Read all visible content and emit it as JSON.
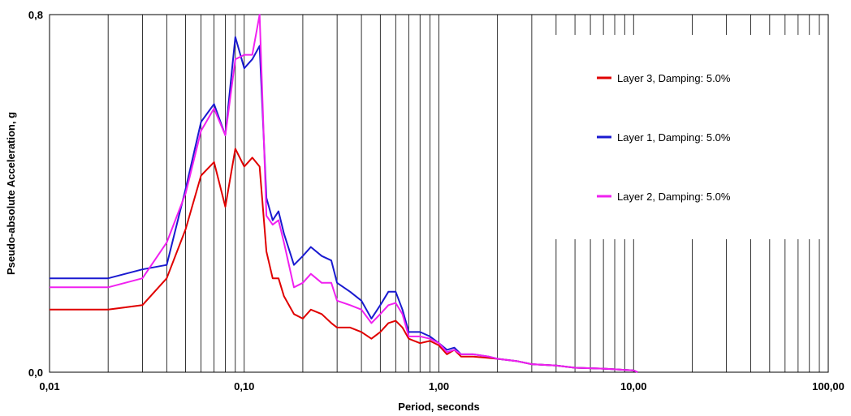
{
  "chart_data": {
    "type": "line",
    "title": "",
    "xlabel": "Period, seconds",
    "ylabel": "Pseudo-absolute Acceleration, g",
    "x_scale": "log",
    "xlim": [
      0.01,
      100
    ],
    "ylim": [
      0,
      0.8
    ],
    "grid": "vertical",
    "legend_position": "top-right",
    "x_tick_labels": [
      "0,01",
      "0,10",
      "1,00",
      "10,00",
      "100,00"
    ],
    "y_tick_labels": [
      "0,0",
      "0,8"
    ],
    "series": [
      {
        "name": "Layer 3, Damping:  5.0%",
        "color": "#e00000",
        "x": [
          0.01,
          0.02,
          0.03,
          0.04,
          0.05,
          0.06,
          0.07,
          0.08,
          0.09,
          0.1,
          0.11,
          0.12,
          0.13,
          0.14,
          0.15,
          0.16,
          0.18,
          0.2,
          0.22,
          0.25,
          0.28,
          0.3,
          0.35,
          0.4,
          0.45,
          0.5,
          0.55,
          0.6,
          0.65,
          0.7,
          0.8,
          0.9,
          1.0,
          1.1,
          1.2,
          1.3,
          1.5,
          1.8,
          2.0,
          2.5,
          3.0,
          4.0,
          5.0,
          7.0,
          10.0,
          10.5
        ],
        "y": [
          0.14,
          0.14,
          0.15,
          0.21,
          0.32,
          0.44,
          0.47,
          0.37,
          0.5,
          0.46,
          0.48,
          0.46,
          0.27,
          0.21,
          0.21,
          0.17,
          0.13,
          0.12,
          0.14,
          0.13,
          0.11,
          0.1,
          0.1,
          0.09,
          0.075,
          0.09,
          0.11,
          0.115,
          0.1,
          0.075,
          0.065,
          0.07,
          0.06,
          0.04,
          0.05,
          0.035,
          0.035,
          0.032,
          0.03,
          0.025,
          0.018,
          0.015,
          0.01,
          0.008,
          0.004,
          0.0
        ]
      },
      {
        "name": "Layer 1, Damping:  5.0%",
        "color": "#1a1ad0",
        "x": [
          0.01,
          0.02,
          0.03,
          0.04,
          0.05,
          0.06,
          0.07,
          0.08,
          0.09,
          0.1,
          0.11,
          0.12,
          0.13,
          0.14,
          0.15,
          0.16,
          0.18,
          0.2,
          0.22,
          0.25,
          0.28,
          0.3,
          0.35,
          0.4,
          0.45,
          0.5,
          0.55,
          0.6,
          0.65,
          0.7,
          0.8,
          0.9,
          1.0,
          1.1,
          1.2,
          1.3,
          1.5,
          1.8,
          2.0,
          2.5,
          3.0,
          4.0,
          5.0,
          7.0,
          10.0,
          10.5
        ],
        "y": [
          0.21,
          0.21,
          0.23,
          0.24,
          0.41,
          0.56,
          0.6,
          0.53,
          0.75,
          0.68,
          0.7,
          0.73,
          0.39,
          0.34,
          0.36,
          0.31,
          0.24,
          0.26,
          0.28,
          0.26,
          0.25,
          0.2,
          0.18,
          0.16,
          0.12,
          0.15,
          0.18,
          0.18,
          0.14,
          0.09,
          0.09,
          0.08,
          0.065,
          0.05,
          0.055,
          0.04,
          0.04,
          0.035,
          0.03,
          0.025,
          0.018,
          0.015,
          0.01,
          0.008,
          0.004,
          0.0
        ]
      },
      {
        "name": "Layer 2, Damping:  5.0%",
        "color": "#f020f0",
        "x": [
          0.01,
          0.02,
          0.03,
          0.04,
          0.05,
          0.06,
          0.07,
          0.08,
          0.09,
          0.1,
          0.11,
          0.12,
          0.13,
          0.14,
          0.15,
          0.16,
          0.18,
          0.2,
          0.22,
          0.25,
          0.28,
          0.3,
          0.35,
          0.4,
          0.45,
          0.5,
          0.55,
          0.6,
          0.65,
          0.7,
          0.8,
          0.9,
          1.0,
          1.1,
          1.2,
          1.3,
          1.5,
          1.8,
          2.0,
          2.5,
          3.0,
          4.0,
          5.0,
          7.0,
          10.0,
          10.5
        ],
        "y": [
          0.19,
          0.19,
          0.21,
          0.29,
          0.4,
          0.54,
          0.59,
          0.53,
          0.7,
          0.71,
          0.71,
          0.8,
          0.35,
          0.33,
          0.34,
          0.29,
          0.19,
          0.2,
          0.22,
          0.2,
          0.2,
          0.16,
          0.15,
          0.14,
          0.11,
          0.13,
          0.15,
          0.155,
          0.13,
          0.08,
          0.08,
          0.075,
          0.065,
          0.045,
          0.05,
          0.04,
          0.04,
          0.035,
          0.03,
          0.025,
          0.018,
          0.015,
          0.01,
          0.008,
          0.004,
          0.0
        ]
      }
    ]
  }
}
